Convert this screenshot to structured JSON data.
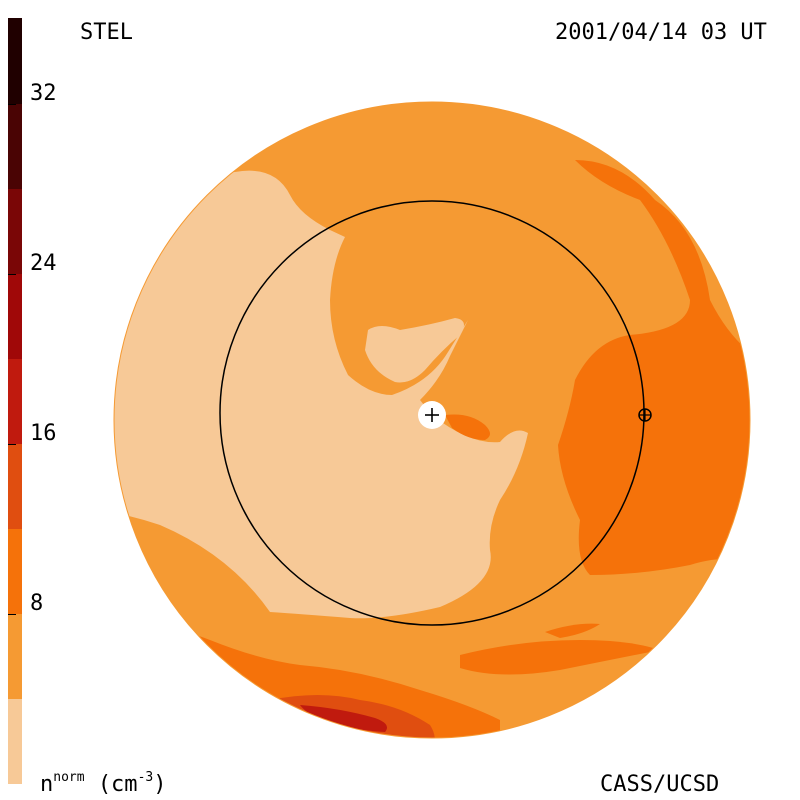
{
  "header": {
    "left_title": "STEL",
    "right_title": "2001/04/14 03 UT"
  },
  "footer": {
    "quantity_base": "n",
    "quantity_sup": "norm",
    "unit": "(cm",
    "unit_exp": "-3",
    "unit_close": ")",
    "credit": "CASS/UCSD"
  },
  "colorbar": {
    "ticks": [
      "32",
      "24",
      "16",
      "8"
    ],
    "tick_values": [
      32,
      24,
      16,
      8
    ],
    "range": [
      0,
      36
    ],
    "levels": [
      {
        "from": 0,
        "to": 4,
        "color": "#f7c997"
      },
      {
        "from": 4,
        "to": 8,
        "color": "#f59a33"
      },
      {
        "from": 8,
        "to": 12,
        "color": "#f5720a"
      },
      {
        "from": 12,
        "to": 16,
        "color": "#e04e10"
      },
      {
        "from": 16,
        "to": 20,
        "color": "#c01a0e"
      },
      {
        "from": 20,
        "to": 24,
        "color": "#a00808"
      },
      {
        "from": 24,
        "to": 28,
        "color": "#7a0606"
      },
      {
        "from": 28,
        "to": 32,
        "color": "#4a0404"
      },
      {
        "from": 32,
        "to": 36,
        "color": "#200000"
      }
    ]
  },
  "colors": {
    "level0": "#f7c997",
    "level1": "#f59a33",
    "level2": "#f5720a",
    "level3": "#e04e10",
    "level4": "#c01a0e",
    "level5": "#a00808"
  },
  "markers": {
    "sun_icon": "plus-in-circle-icon",
    "earth_icon": "circle-plus-icon"
  }
}
